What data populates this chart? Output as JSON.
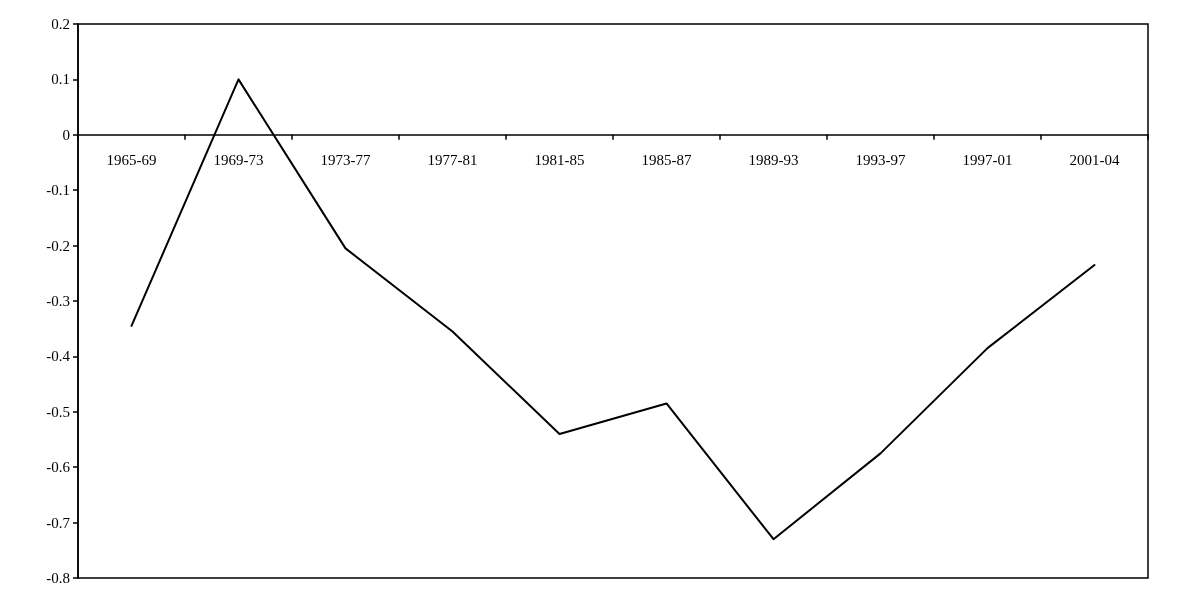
{
  "chart_data": {
    "type": "line",
    "categories": [
      "1965-69",
      "1969-73",
      "1973-77",
      "1977-81",
      "1981-85",
      "1985-87",
      "1989-93",
      "1993-97",
      "1997-01",
      "2001-04"
    ],
    "series": [
      {
        "color": "#000000",
        "values": [
          -0.345,
          0.1,
          -0.205,
          -0.355,
          -0.54,
          -0.485,
          -0.73,
          -0.575,
          -0.385,
          -0.235
        ]
      }
    ],
    "ylim": [
      -0.8,
      0.2
    ],
    "yticks": [
      -0.8,
      -0.7,
      -0.6,
      -0.5,
      -0.4,
      -0.3,
      -0.2,
      -0.1,
      0,
      0.1,
      0.2
    ],
    "marker": "none",
    "line_style": "solid"
  }
}
